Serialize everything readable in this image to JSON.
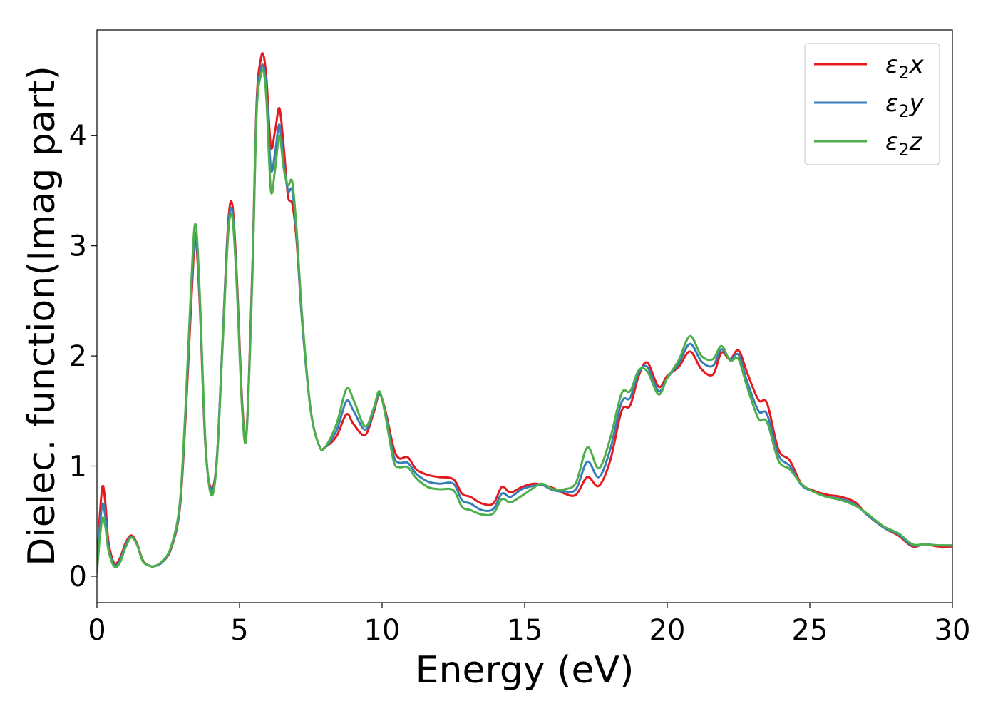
{
  "chart_data": {
    "type": "line",
    "title": "",
    "xlabel": "Energy (eV)",
    "ylabel": "Dielec. function(Imag part)",
    "xlim": [
      0,
      30
    ],
    "ylim": [
      -0.24,
      4.96
    ],
    "xticks": [
      0,
      5,
      10,
      15,
      20,
      25,
      30
    ],
    "xtick_labels": [
      "0",
      "5",
      "10",
      "15",
      "20",
      "25",
      "30"
    ],
    "yticks": [
      0,
      1,
      2,
      3,
      4
    ],
    "ytick_labels": [
      "0",
      "1",
      "2",
      "3",
      "4"
    ],
    "grid": false,
    "legend_position": "top-right",
    "x": [
      0,
      0.1,
      0.2,
      0.3,
      0.4,
      0.6,
      0.8,
      1.0,
      1.2,
      1.4,
      1.6,
      1.8,
      2.0,
      2.3,
      2.6,
      2.9,
      3.1,
      3.3,
      3.45,
      3.6,
      3.8,
      4.0,
      4.2,
      4.4,
      4.6,
      4.75,
      4.9,
      5.1,
      5.25,
      5.45,
      5.6,
      5.75,
      5.85,
      5.95,
      6.1,
      6.25,
      6.4,
      6.55,
      6.7,
      6.85,
      7.0,
      7.2,
      7.5,
      7.8,
      8.0,
      8.4,
      8.75,
      9.0,
      9.4,
      9.7,
      9.9,
      10.1,
      10.4,
      10.6,
      10.9,
      11.2,
      11.6,
      12.0,
      12.5,
      12.8,
      13.1,
      13.5,
      13.9,
      14.2,
      14.5,
      14.9,
      15.3,
      15.6,
      16.0,
      16.4,
      16.8,
      17.2,
      17.6,
      18.0,
      18.4,
      18.7,
      19.0,
      19.3,
      19.7,
      20.0,
      20.4,
      20.8,
      21.2,
      21.6,
      21.9,
      22.2,
      22.5,
      22.8,
      23.2,
      23.5,
      23.9,
      24.3,
      24.7,
      25.1,
      25.6,
      26.1,
      26.6,
      27.0,
      27.6,
      28.1,
      28.6,
      29.0,
      29.5,
      30.0
    ],
    "series": [
      {
        "name": "ε",
        "name_sub": "2",
        "name_suffix": "x",
        "color": "#e41a1c",
        "values": [
          0.05,
          0.55,
          0.82,
          0.65,
          0.32,
          0.12,
          0.16,
          0.3,
          0.37,
          0.3,
          0.15,
          0.1,
          0.09,
          0.13,
          0.25,
          0.6,
          1.4,
          2.45,
          3.05,
          2.5,
          1.2,
          0.8,
          1.05,
          2.1,
          3.2,
          3.37,
          2.75,
          1.55,
          1.33,
          2.8,
          4.3,
          4.7,
          4.72,
          4.5,
          3.9,
          4.05,
          4.25,
          3.9,
          3.45,
          3.38,
          3.05,
          2.3,
          1.5,
          1.18,
          1.17,
          1.27,
          1.47,
          1.38,
          1.28,
          1.48,
          1.65,
          1.52,
          1.17,
          1.07,
          1.08,
          0.97,
          0.92,
          0.9,
          0.88,
          0.75,
          0.72,
          0.66,
          0.66,
          0.81,
          0.76,
          0.81,
          0.84,
          0.83,
          0.8,
          0.75,
          0.74,
          0.9,
          0.82,
          1.05,
          1.5,
          1.55,
          1.82,
          1.94,
          1.72,
          1.82,
          1.9,
          2.04,
          1.88,
          1.83,
          2.03,
          1.97,
          2.05,
          1.85,
          1.6,
          1.57,
          1.15,
          1.05,
          0.84,
          0.78,
          0.74,
          0.72,
          0.67,
          0.56,
          0.44,
          0.37,
          0.27,
          0.29,
          0.27,
          0.27
        ]
      },
      {
        "name": "ε",
        "name_sub": "2",
        "name_suffix": "y",
        "color": "#377eb8",
        "values": [
          0.04,
          0.45,
          0.66,
          0.53,
          0.27,
          0.1,
          0.14,
          0.28,
          0.36,
          0.29,
          0.14,
          0.1,
          0.09,
          0.13,
          0.26,
          0.62,
          1.45,
          2.55,
          3.12,
          2.55,
          1.22,
          0.77,
          1.05,
          2.1,
          3.15,
          3.31,
          2.7,
          1.5,
          1.31,
          2.75,
          4.25,
          4.6,
          4.62,
          4.4,
          3.7,
          3.85,
          4.1,
          3.75,
          3.5,
          3.5,
          3.1,
          2.3,
          1.5,
          1.18,
          1.17,
          1.32,
          1.59,
          1.5,
          1.33,
          1.5,
          1.66,
          1.5,
          1.1,
          1.03,
          1.03,
          0.93,
          0.86,
          0.84,
          0.84,
          0.69,
          0.66,
          0.6,
          0.61,
          0.75,
          0.72,
          0.79,
          0.82,
          0.83,
          0.78,
          0.77,
          0.79,
          1.04,
          0.9,
          1.15,
          1.58,
          1.62,
          1.85,
          1.9,
          1.68,
          1.8,
          1.93,
          2.11,
          1.95,
          1.91,
          2.06,
          1.97,
          2.01,
          1.77,
          1.5,
          1.47,
          1.1,
          1.0,
          0.83,
          0.77,
          0.72,
          0.7,
          0.65,
          0.56,
          0.44,
          0.38,
          0.28,
          0.29,
          0.28,
          0.28
        ]
      },
      {
        "name": "ε",
        "name_sub": "2",
        "name_suffix": "z",
        "color": "#4daf4a",
        "values": [
          0.03,
          0.35,
          0.53,
          0.44,
          0.24,
          0.09,
          0.12,
          0.26,
          0.35,
          0.29,
          0.14,
          0.1,
          0.09,
          0.14,
          0.27,
          0.65,
          1.5,
          2.62,
          3.2,
          2.6,
          1.25,
          0.74,
          1.02,
          2.05,
          3.1,
          3.26,
          2.65,
          1.48,
          1.3,
          2.7,
          4.2,
          4.55,
          4.58,
          4.3,
          3.5,
          3.7,
          4.0,
          3.7,
          3.55,
          3.58,
          3.15,
          2.35,
          1.5,
          1.18,
          1.17,
          1.38,
          1.7,
          1.6,
          1.36,
          1.52,
          1.68,
          1.48,
          1.05,
          0.99,
          0.99,
          0.89,
          0.81,
          0.79,
          0.78,
          0.63,
          0.6,
          0.56,
          0.57,
          0.7,
          0.67,
          0.73,
          0.8,
          0.84,
          0.79,
          0.79,
          0.85,
          1.17,
          0.98,
          1.25,
          1.66,
          1.68,
          1.87,
          1.86,
          1.65,
          1.8,
          1.96,
          2.18,
          2.0,
          1.97,
          2.09,
          1.96,
          1.97,
          1.72,
          1.43,
          1.4,
          1.05,
          0.97,
          0.84,
          0.77,
          0.72,
          0.69,
          0.64,
          0.57,
          0.45,
          0.39,
          0.29,
          0.29,
          0.28,
          0.28
        ]
      }
    ]
  }
}
